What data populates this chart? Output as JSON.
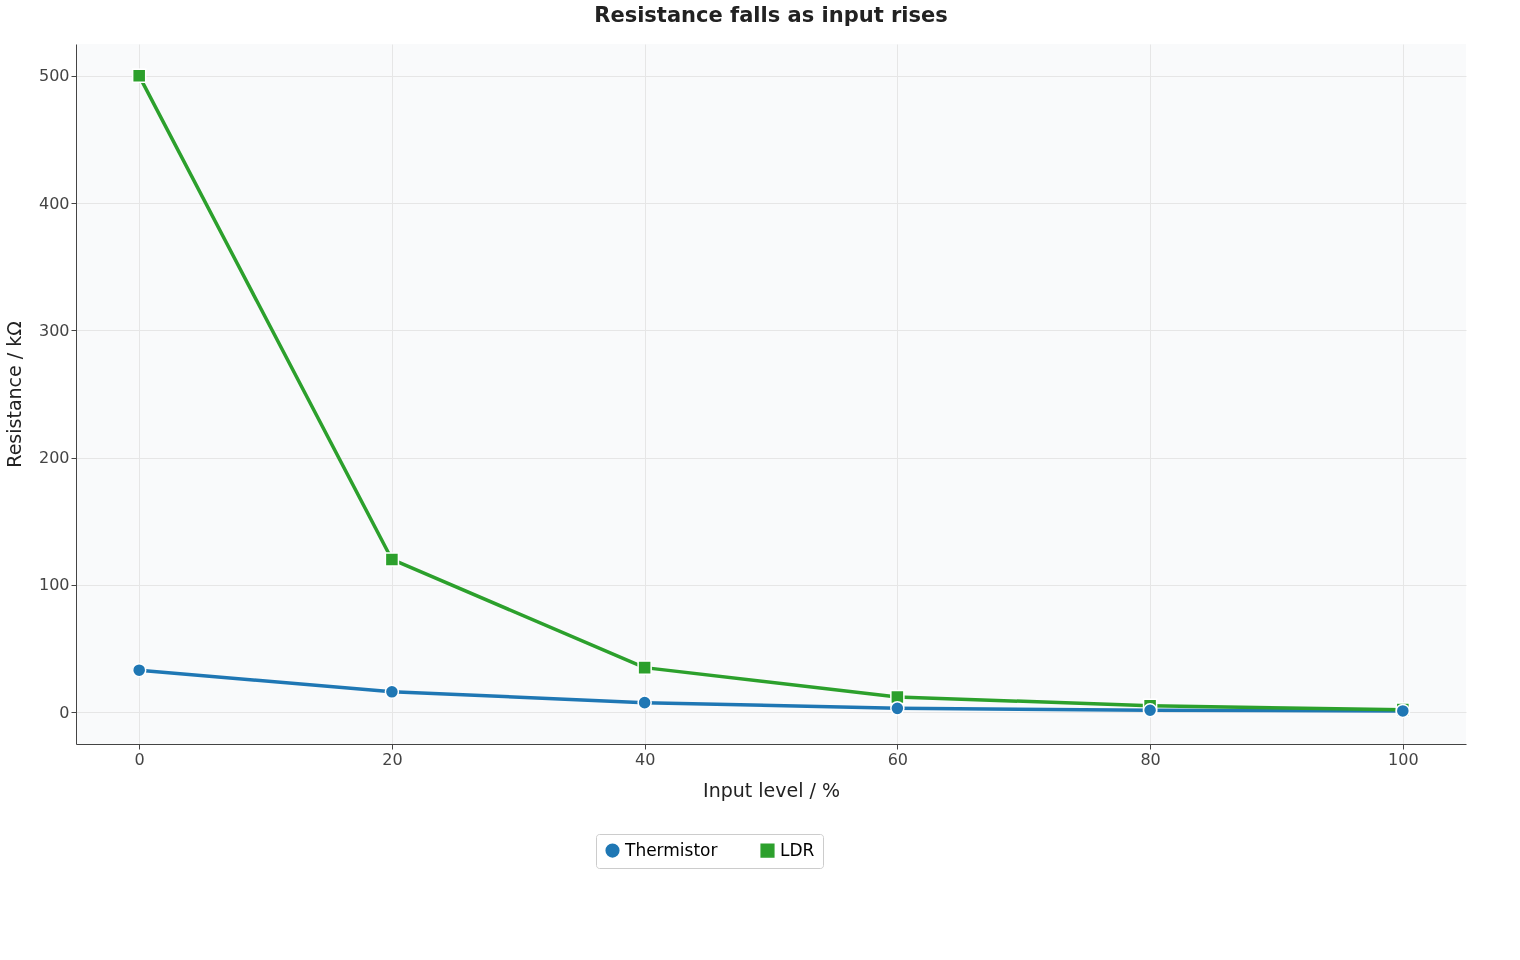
{
  "chart_data": {
    "type": "line",
    "title": "Resistance falls as input rises",
    "xlabel": "Input level / %",
    "ylabel": "Resistance / kΩ",
    "x": [
      0,
      20,
      40,
      60,
      80,
      100
    ],
    "series": [
      {
        "name": "Thermistor",
        "color": "#1f77b4",
        "marker": "circle",
        "values": [
          33,
          16,
          7.5,
          3,
          1.5,
          1
        ]
      },
      {
        "name": "LDR",
        "color": "#2ca02c",
        "marker": "square",
        "values": [
          500,
          120,
          35,
          12,
          5,
          2
        ]
      }
    ],
    "xlim": [
      -5,
      105
    ],
    "xticks": [
      0,
      20,
      40,
      60,
      80,
      100
    ],
    "ylim": [
      -25,
      525
    ],
    "yticks": [
      0,
      100,
      200,
      300,
      400,
      500
    ],
    "grid": true,
    "legend": "bottom",
    "line_style": "solid"
  }
}
